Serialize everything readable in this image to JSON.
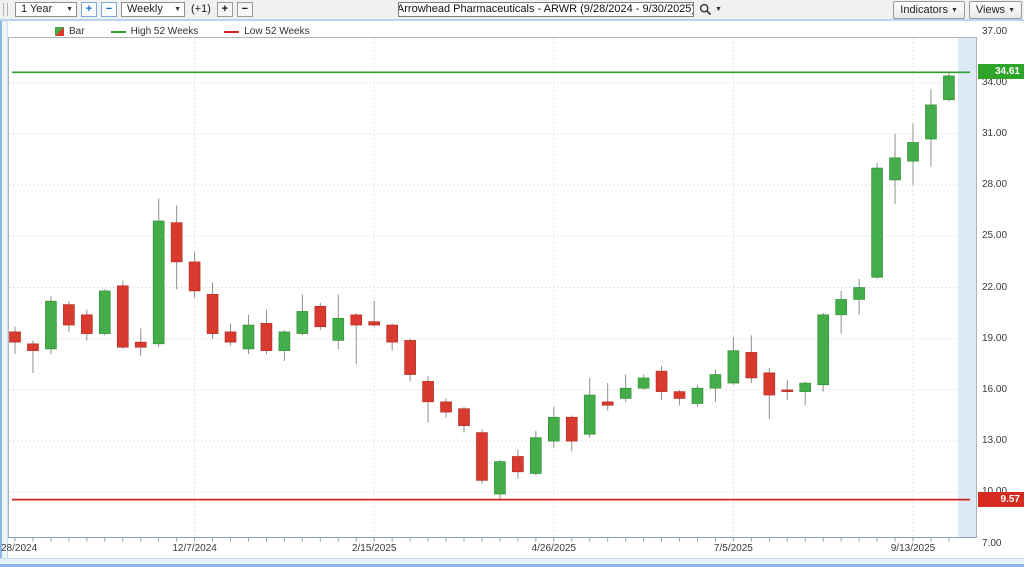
{
  "toolbar": {
    "range_select": "1 Year",
    "range_zoom_in": "+",
    "range_zoom_out": "−",
    "period_select": "Weekly",
    "period_offset": "(+1)",
    "bar_width_plus": "+",
    "bar_width_minus": "−",
    "symbol_input": "Arrowhead Pharmaceuticals - ARWR (9/28/2024 - 9/30/2025)",
    "indicators_button": "Indicators",
    "views_button": "Views"
  },
  "legend": {
    "bar_label": "Bar",
    "high_label": "High 52 Weeks",
    "low_label": "Low 52 Weeks"
  },
  "colors": {
    "candle_up": "#44ad4a",
    "candle_up_border": "#2e8c36",
    "candle_down": "#d93a30",
    "candle_down_border": "#ad291f",
    "wick": "#909090",
    "high_line": "#2da02d",
    "low_line": "#d02520",
    "badge_high_bg": "#2ea42b",
    "badge_low_bg": "#d52b21",
    "future_band": "#dde9f5",
    "gridline": "#dcdcdc"
  },
  "chart_data": {
    "type": "candlestick",
    "title": "Arrowhead Pharmaceuticals - ARWR (9/28/2024 - 9/30/2025)",
    "period": "Weekly",
    "range": "1 Year",
    "ylim": [
      7,
      37
    ],
    "y_ticks": [
      37,
      34,
      31,
      28,
      25,
      22,
      19,
      16,
      13,
      10,
      7
    ],
    "x_ticks": [
      {
        "index": 0,
        "label": "28/2024"
      },
      {
        "index": 10,
        "label": "12/7/2024"
      },
      {
        "index": 20,
        "label": "2/15/2025"
      },
      {
        "index": 30,
        "label": "4/26/2025"
      },
      {
        "index": 40,
        "label": "7/5/2025"
      },
      {
        "index": 50,
        "label": "9/13/2025"
      }
    ],
    "high_52w": 34.61,
    "low_52w": 9.57,
    "candles": [
      {
        "d": "9/28/2024",
        "o": 19.4,
        "h": 19.7,
        "l": 18.1,
        "c": 18.8
      },
      {
        "d": "10/5/2024",
        "o": 18.7,
        "h": 18.9,
        "l": 17.0,
        "c": 18.3
      },
      {
        "d": "10/12/2024",
        "o": 18.4,
        "h": 21.5,
        "l": 18.1,
        "c": 21.2
      },
      {
        "d": "10/19/2024",
        "o": 21.0,
        "h": 21.2,
        "l": 19.4,
        "c": 19.8
      },
      {
        "d": "10/26/2024",
        "o": 20.4,
        "h": 20.7,
        "l": 18.9,
        "c": 19.3
      },
      {
        "d": "11/2/2024",
        "o": 19.3,
        "h": 21.9,
        "l": 19.2,
        "c": 21.8
      },
      {
        "d": "11/9/2024",
        "o": 22.1,
        "h": 22.4,
        "l": 18.4,
        "c": 18.5
      },
      {
        "d": "11/16/2024",
        "o": 18.8,
        "h": 19.6,
        "l": 18.0,
        "c": 18.5
      },
      {
        "d": "11/23/2024",
        "o": 18.7,
        "h": 27.2,
        "l": 18.5,
        "c": 25.9
      },
      {
        "d": "11/30/2024",
        "o": 25.8,
        "h": 26.8,
        "l": 21.9,
        "c": 23.5
      },
      {
        "d": "12/7/2024",
        "o": 23.5,
        "h": 24.1,
        "l": 21.4,
        "c": 21.8
      },
      {
        "d": "12/14/2024",
        "o": 21.6,
        "h": 22.3,
        "l": 19.0,
        "c": 19.3
      },
      {
        "d": "12/21/2024",
        "o": 19.4,
        "h": 19.9,
        "l": 18.6,
        "c": 18.8
      },
      {
        "d": "12/28/2024",
        "o": 18.4,
        "h": 20.4,
        "l": 18.1,
        "c": 19.8
      },
      {
        "d": "1/4/2025",
        "o": 19.9,
        "h": 20.7,
        "l": 18.1,
        "c": 18.3
      },
      {
        "d": "1/11/2025",
        "o": 18.3,
        "h": 19.5,
        "l": 17.7,
        "c": 19.4
      },
      {
        "d": "1/18/2025",
        "o": 19.3,
        "h": 21.6,
        "l": 19.2,
        "c": 20.6
      },
      {
        "d": "1/25/2025",
        "o": 20.9,
        "h": 21.1,
        "l": 19.5,
        "c": 19.7
      },
      {
        "d": "2/1/2025",
        "o": 18.9,
        "h": 21.6,
        "l": 18.4,
        "c": 20.2
      },
      {
        "d": "2/8/2025",
        "o": 20.4,
        "h": 20.5,
        "l": 17.5,
        "c": 19.8
      },
      {
        "d": "2/15/2025",
        "o": 20.0,
        "h": 21.2,
        "l": 19.7,
        "c": 19.8
      },
      {
        "d": "2/22/2025",
        "o": 19.8,
        "h": 19.9,
        "l": 18.3,
        "c": 18.8
      },
      {
        "d": "3/1/2025",
        "o": 18.9,
        "h": 19.0,
        "l": 16.5,
        "c": 16.9
      },
      {
        "d": "3/8/2025",
        "o": 16.5,
        "h": 16.8,
        "l": 14.1,
        "c": 15.3
      },
      {
        "d": "3/15/2025",
        "o": 15.3,
        "h": 15.5,
        "l": 14.4,
        "c": 14.7
      },
      {
        "d": "3/22/2025",
        "o": 14.9,
        "h": 15.0,
        "l": 13.5,
        "c": 13.9
      },
      {
        "d": "3/29/2025",
        "o": 13.5,
        "h": 13.7,
        "l": 10.5,
        "c": 10.7
      },
      {
        "d": "4/5/2025",
        "o": 9.9,
        "h": 11.9,
        "l": 9.57,
        "c": 11.8
      },
      {
        "d": "4/12/2025",
        "o": 12.1,
        "h": 12.5,
        "l": 10.8,
        "c": 11.2
      },
      {
        "d": "4/19/2025",
        "o": 11.1,
        "h": 13.6,
        "l": 11.0,
        "c": 13.2
      },
      {
        "d": "4/26/2025",
        "o": 13.0,
        "h": 15.0,
        "l": 12.6,
        "c": 14.4
      },
      {
        "d": "5/3/2025",
        "o": 14.4,
        "h": 14.5,
        "l": 12.4,
        "c": 13.0
      },
      {
        "d": "5/10/2025",
        "o": 13.4,
        "h": 16.7,
        "l": 13.2,
        "c": 15.7
      },
      {
        "d": "5/17/2025",
        "o": 15.3,
        "h": 16.4,
        "l": 14.8,
        "c": 15.1
      },
      {
        "d": "5/24/2025",
        "o": 15.5,
        "h": 16.9,
        "l": 15.3,
        "c": 16.1
      },
      {
        "d": "5/31/2025",
        "o": 16.1,
        "h": 16.9,
        "l": 16.0,
        "c": 16.7
      },
      {
        "d": "6/7/2025",
        "o": 17.1,
        "h": 17.4,
        "l": 15.4,
        "c": 15.9
      },
      {
        "d": "6/14/2025",
        "o": 15.9,
        "h": 16.0,
        "l": 15.1,
        "c": 15.5
      },
      {
        "d": "6/21/2025",
        "o": 15.2,
        "h": 16.3,
        "l": 15.0,
        "c": 16.1
      },
      {
        "d": "6/28/2025",
        "o": 16.1,
        "h": 17.2,
        "l": 15.3,
        "c": 16.9
      },
      {
        "d": "7/5/2025",
        "o": 16.4,
        "h": 19.1,
        "l": 16.3,
        "c": 18.3
      },
      {
        "d": "7/12/2025",
        "o": 18.2,
        "h": 19.2,
        "l": 16.4,
        "c": 16.7
      },
      {
        "d": "7/19/2025",
        "o": 17.0,
        "h": 17.3,
        "l": 14.3,
        "c": 15.7
      },
      {
        "d": "7/26/2025",
        "o": 16.0,
        "h": 16.6,
        "l": 15.4,
        "c": 15.9
      },
      {
        "d": "8/2/2025",
        "o": 15.9,
        "h": 16.5,
        "l": 15.1,
        "c": 16.4
      },
      {
        "d": "8/9/2025",
        "o": 16.3,
        "h": 20.5,
        "l": 15.9,
        "c": 20.4
      },
      {
        "d": "8/16/2025",
        "o": 20.4,
        "h": 21.8,
        "l": 19.3,
        "c": 21.3
      },
      {
        "d": "8/23/2025",
        "o": 21.3,
        "h": 22.5,
        "l": 20.4,
        "c": 22.0
      },
      {
        "d": "8/30/2025",
        "o": 22.6,
        "h": 29.3,
        "l": 22.5,
        "c": 29.0
      },
      {
        "d": "9/6/2025",
        "o": 28.3,
        "h": 31.0,
        "l": 26.9,
        "c": 29.6
      },
      {
        "d": "9/13/2025",
        "o": 29.4,
        "h": 31.6,
        "l": 28.0,
        "c": 30.5
      },
      {
        "d": "9/20/2025",
        "o": 30.7,
        "h": 33.6,
        "l": 29.1,
        "c": 32.7
      },
      {
        "d": "9/27/2025",
        "o": 33.0,
        "h": 34.61,
        "l": 32.9,
        "c": 34.4
      }
    ]
  }
}
